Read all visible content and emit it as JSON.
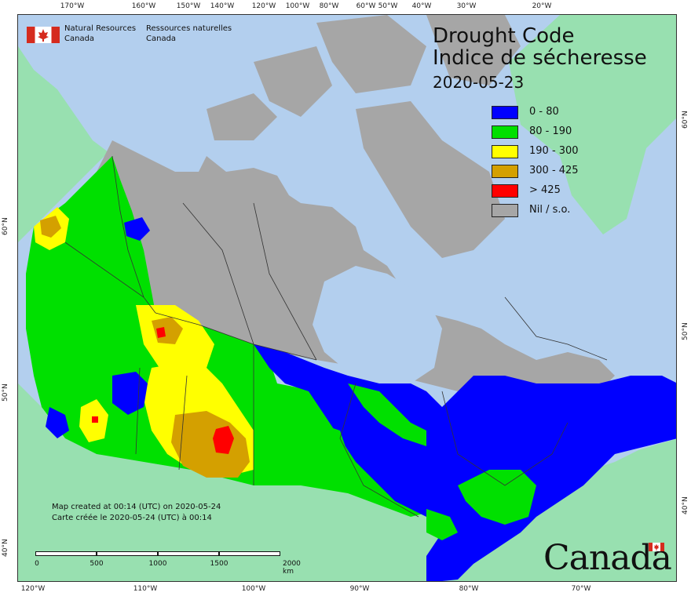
{
  "map": {
    "title_en": "Drought Code",
    "title_fr": "Indice de sécheresse",
    "date": "2020-05-23",
    "agency": {
      "name_en_line1": "Natural Resources",
      "name_en_line2": "Canada",
      "name_fr_line1": "Ressources naturelles",
      "name_fr_line2": "Canada"
    },
    "legend": [
      {
        "label": "0 - 80",
        "color": "#0000ff"
      },
      {
        "label": "80 - 190",
        "color": "#00e000"
      },
      {
        "label": "190 - 300",
        "color": "#ffff00"
      },
      {
        "label": "300 - 425",
        "color": "#d4a000"
      },
      {
        "label": "> 425",
        "color": "#ff0000"
      },
      {
        "label": "Nil / s.o.",
        "color": "#a6a6a6"
      }
    ],
    "created_en": "Map created at 00:14 (UTC) on 2020-05-24",
    "created_fr": "Carte créée le 2020-05-24 (UTC) à 00:14",
    "scale_labels": [
      "0",
      "500",
      "1000",
      "1500",
      "2000  km"
    ],
    "wordmark": "Canada",
    "top_ticks": [
      "170°W",
      "160°W",
      "150°W",
      "140°W",
      "120°W",
      "100°W",
      "80°W",
      "60°W",
      "50°W",
      "40°W",
      "30°W",
      "20°W"
    ],
    "bottom_ticks": [
      "120°W",
      "110°W",
      "100°W",
      "90°W",
      "80°W",
      "70°W"
    ],
    "left_ticks": [
      "60°N",
      "50°N",
      "40°N"
    ],
    "right_ticks": [
      "60°N",
      "50°N",
      "40°N"
    ],
    "colors": {
      "ocean": "#b3cfee",
      "usa_land": "#98e0b0",
      "greenland": "#98e0b0",
      "nil": "#a6a6a6",
      "border": "#333333"
    }
  }
}
